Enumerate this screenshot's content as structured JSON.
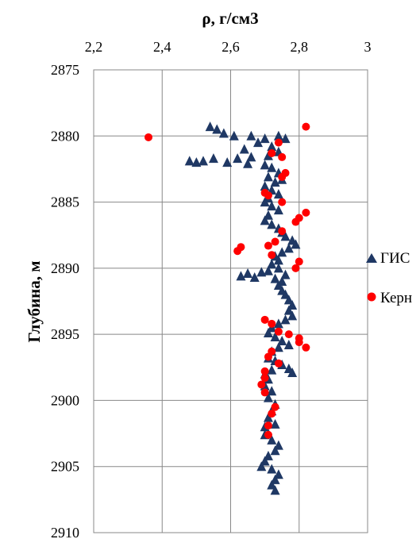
{
  "chart_data": {
    "type": "scatter",
    "title": "ρ, г/см3",
    "xlabel": "ρ, г/см3",
    "ylabel": "Глубина, м",
    "x_axis_position": "top",
    "y_inverted": true,
    "xlim": [
      2.2,
      3.0
    ],
    "ylim": [
      2875,
      2910
    ],
    "x_ticks": [
      "2,2",
      "2,4",
      "2,6",
      "2,8",
      "3"
    ],
    "y_ticks": [
      "2875",
      "2880",
      "2885",
      "2890",
      "2895",
      "2900",
      "2905",
      "2910"
    ],
    "x_tick_values": [
      2.2,
      2.4,
      2.6,
      2.8,
      3.0
    ],
    "y_tick_values": [
      2875,
      2880,
      2885,
      2890,
      2895,
      2900,
      2905,
      2910
    ],
    "grid": true,
    "legend_position": "right",
    "series": [
      {
        "name": "ГИС",
        "marker": "triangle",
        "color": "#1f3864",
        "points": [
          [
            2.54,
            2879.3
          ],
          [
            2.56,
            2879.5
          ],
          [
            2.58,
            2879.8
          ],
          [
            2.61,
            2880.0
          ],
          [
            2.66,
            2880.0
          ],
          [
            2.7,
            2880.2
          ],
          [
            2.74,
            2880.0
          ],
          [
            2.76,
            2880.2
          ],
          [
            2.68,
            2880.5
          ],
          [
            2.72,
            2880.8
          ],
          [
            2.74,
            2881.2
          ],
          [
            2.71,
            2881.5
          ],
          [
            2.64,
            2881.0
          ],
          [
            2.66,
            2881.6
          ],
          [
            2.48,
            2881.9
          ],
          [
            2.5,
            2882.0
          ],
          [
            2.52,
            2881.9
          ],
          [
            2.55,
            2881.7
          ],
          [
            2.59,
            2882.0
          ],
          [
            2.62,
            2881.7
          ],
          [
            2.65,
            2882.1
          ],
          [
            2.7,
            2882.2
          ],
          [
            2.72,
            2882.4
          ],
          [
            2.74,
            2882.8
          ],
          [
            2.71,
            2883.1
          ],
          [
            2.73,
            2883.5
          ],
          [
            2.75,
            2883.3
          ],
          [
            2.7,
            2883.8
          ],
          [
            2.72,
            2884.1
          ],
          [
            2.74,
            2884.4
          ],
          [
            2.71,
            2884.7
          ],
          [
            2.7,
            2885.0
          ],
          [
            2.72,
            2885.3
          ],
          [
            2.74,
            2885.6
          ],
          [
            2.71,
            2886.0
          ],
          [
            2.7,
            2886.4
          ],
          [
            2.72,
            2886.7
          ],
          [
            2.74,
            2887.0
          ],
          [
            2.75,
            2887.3
          ],
          [
            2.76,
            2887.6
          ],
          [
            2.78,
            2887.9
          ],
          [
            2.79,
            2888.2
          ],
          [
            2.77,
            2888.5
          ],
          [
            2.75,
            2888.8
          ],
          [
            2.73,
            2889.1
          ],
          [
            2.74,
            2889.4
          ],
          [
            2.72,
            2889.7
          ],
          [
            2.74,
            2890.0
          ],
          [
            2.71,
            2890.2
          ],
          [
            2.63,
            2890.6
          ],
          [
            2.65,
            2890.4
          ],
          [
            2.67,
            2890.7
          ],
          [
            2.69,
            2890.3
          ],
          [
            2.73,
            2890.8
          ],
          [
            2.76,
            2890.5
          ],
          [
            2.75,
            2891.0
          ],
          [
            2.74,
            2891.3
          ],
          [
            2.75,
            2891.7
          ],
          [
            2.76,
            2892.0
          ],
          [
            2.77,
            2892.4
          ],
          [
            2.78,
            2892.8
          ],
          [
            2.77,
            2893.2
          ],
          [
            2.78,
            2893.6
          ],
          [
            2.76,
            2893.9
          ],
          [
            2.74,
            2894.2
          ],
          [
            2.72,
            2894.5
          ],
          [
            2.71,
            2894.9
          ],
          [
            2.73,
            2895.2
          ],
          [
            2.75,
            2895.5
          ],
          [
            2.77,
            2895.8
          ],
          [
            2.74,
            2896.0
          ],
          [
            2.72,
            2896.3
          ],
          [
            2.71,
            2896.8
          ],
          [
            2.73,
            2897.0
          ],
          [
            2.75,
            2897.3
          ],
          [
            2.77,
            2897.6
          ],
          [
            2.78,
            2897.9
          ],
          [
            2.72,
            2897.7
          ],
          [
            2.7,
            2898.0
          ],
          [
            2.71,
            2898.4
          ],
          [
            2.7,
            2898.9
          ],
          [
            2.72,
            2899.3
          ],
          [
            2.71,
            2899.8
          ],
          [
            2.73,
            2900.3
          ],
          [
            2.72,
            2900.8
          ],
          [
            2.71,
            2901.3
          ],
          [
            2.73,
            2901.8
          ],
          [
            2.7,
            2902.0
          ],
          [
            2.7,
            2902.6
          ],
          [
            2.72,
            2903.0
          ],
          [
            2.74,
            2903.4
          ],
          [
            2.73,
            2903.8
          ],
          [
            2.71,
            2904.2
          ],
          [
            2.7,
            2904.6
          ],
          [
            2.69,
            2905.0
          ],
          [
            2.72,
            2905.2
          ],
          [
            2.74,
            2905.6
          ],
          [
            2.73,
            2906.0
          ],
          [
            2.72,
            2906.4
          ],
          [
            2.73,
            2906.8
          ]
        ]
      },
      {
        "name": "Керн",
        "marker": "circle",
        "color": "#ff0000",
        "points": [
          [
            2.82,
            2879.3
          ],
          [
            2.36,
            2880.1
          ],
          [
            2.74,
            2880.5
          ],
          [
            2.72,
            2881.3
          ],
          [
            2.75,
            2881.6
          ],
          [
            2.76,
            2882.8
          ],
          [
            2.75,
            2883.1
          ],
          [
            2.7,
            2884.3
          ],
          [
            2.71,
            2884.5
          ],
          [
            2.75,
            2885.0
          ],
          [
            2.82,
            2885.8
          ],
          [
            2.8,
            2886.2
          ],
          [
            2.79,
            2886.5
          ],
          [
            2.75,
            2887.2
          ],
          [
            2.73,
            2888.0
          ],
          [
            2.63,
            2888.4
          ],
          [
            2.62,
            2888.7
          ],
          [
            2.71,
            2888.3
          ],
          [
            2.72,
            2889.0
          ],
          [
            2.8,
            2889.5
          ],
          [
            2.79,
            2890.0
          ],
          [
            2.7,
            2893.9
          ],
          [
            2.72,
            2894.2
          ],
          [
            2.74,
            2894.8
          ],
          [
            2.77,
            2895.0
          ],
          [
            2.8,
            2895.3
          ],
          [
            2.8,
            2895.6
          ],
          [
            2.82,
            2896.0
          ],
          [
            2.72,
            2896.3
          ],
          [
            2.71,
            2896.7
          ],
          [
            2.74,
            2897.2
          ],
          [
            2.7,
            2897.8
          ],
          [
            2.7,
            2898.3
          ],
          [
            2.69,
            2898.8
          ],
          [
            2.7,
            2899.4
          ],
          [
            2.73,
            2900.5
          ],
          [
            2.72,
            2901.0
          ],
          [
            2.71,
            2901.9
          ],
          [
            2.71,
            2902.6
          ]
        ]
      }
    ]
  }
}
